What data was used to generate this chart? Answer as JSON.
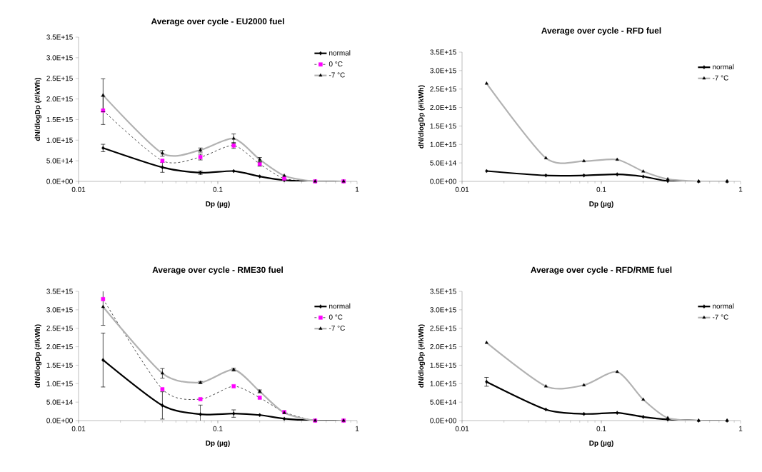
{
  "chart_data": [
    {
      "type": "line",
      "title": "Average over cycle - EU2000 fuel",
      "xlabel": "Dp (µg)",
      "ylabel": "dN/dlogDp  (#/kWh)",
      "log": "x",
      "legend": "top right",
      "grid": false,
      "x": [
        0.015,
        0.04,
        0.075,
        0.13,
        0.2,
        0.3,
        0.5,
        0.8
      ],
      "xlim": [
        0.01,
        1
      ],
      "xticks": [
        0.01,
        0.1,
        1
      ],
      "ylim": [
        0,
        3500000000000000.0
      ],
      "yticks": [
        {
          "value": 0,
          "label": "0.0E+00"
        },
        {
          "value": 500000000000000.0,
          "label": "5.0E+14"
        },
        {
          "value": 1000000000000000.0,
          "label": "1.0E+15"
        },
        {
          "value": 1500000000000000.0,
          "label": "1.5E+15"
        },
        {
          "value": 2000000000000000.0,
          "label": "2.0E+15"
        },
        {
          "value": 2500000000000000.0,
          "label": "2.5E+15"
        },
        {
          "value": 3000000000000000.0,
          "label": "3.0E+15"
        },
        {
          "value": 3500000000000000.0,
          "label": "3.5E+15"
        }
      ],
      "series": [
        {
          "name": "normal",
          "color": "#000000",
          "marker": "diamond",
          "line_style": "solid",
          "values": [
            810000000000000.0,
            340000000000000.0,
            210000000000000.0,
            250000000000000.0,
            120000000000000.0,
            30000000000000.0,
            0,
            0
          ],
          "errors": [
            90000000000000.0,
            120000000000000.0,
            40000000000000.0,
            null,
            null,
            null,
            null,
            null
          ]
        },
        {
          "name": "0 °C",
          "color": "#ff00ff",
          "marker": "square",
          "line_style": "dashed",
          "values": [
            1720000000000000.0,
            500000000000000.0,
            590000000000000.0,
            870000000000000.0,
            420000000000000.0,
            70000000000000.0,
            0,
            0
          ],
          "errors": [
            340000000000000.0,
            null,
            70000000000000.0,
            70000000000000.0,
            50000000000000.0,
            null,
            null,
            null
          ]
        },
        {
          "name": "-7 °C",
          "color": "#b2b2b2",
          "marker": "triangle",
          "line_style": "solid",
          "values": [
            2090000000000000.0,
            680000000000000.0,
            760000000000000.0,
            1040000000000000.0,
            530000000000000.0,
            140000000000000.0,
            0,
            0
          ],
          "errors": [
            400000000000000.0,
            70000000000000.0,
            50000000000000.0,
            110000000000000.0,
            50000000000000.0,
            null,
            null,
            null
          ]
        }
      ]
    },
    {
      "type": "line",
      "title": "Average over cycle - RFD fuel",
      "xlabel": "Dp (µg)",
      "ylabel": "dN/dlogDp (#/kWh)",
      "log": "x",
      "legend": "top right",
      "grid": false,
      "x": [
        0.015,
        0.04,
        0.075,
        0.13,
        0.2,
        0.3,
        0.5,
        0.8
      ],
      "xlim": [
        0.01,
        1
      ],
      "xticks": [
        0.01,
        0.1,
        1
      ],
      "ylim": [
        0,
        3500000000000000.0
      ],
      "yticks": [
        {
          "value": 0,
          "label": "0.0E+00"
        },
        {
          "value": 500000000000000.0,
          "label": "5.0E+14"
        },
        {
          "value": 1000000000000000.0,
          "label": "1.0E+15"
        },
        {
          "value": 1500000000000000.0,
          "label": "1.5E+15"
        },
        {
          "value": 2000000000000000.0,
          "label": "2.0E+15"
        },
        {
          "value": 2500000000000000.0,
          "label": "2.5E+15"
        },
        {
          "value": 3000000000000000.0,
          "label": "3.0E+15"
        },
        {
          "value": 3500000000000000.0,
          "label": "3.5E+15"
        }
      ],
      "series": [
        {
          "name": "normal",
          "color": "#000000",
          "marker": "diamond",
          "line_style": "solid",
          "values": [
            280000000000000.0,
            160000000000000.0,
            160000000000000.0,
            190000000000000.0,
            130000000000000.0,
            10000000000000.0,
            0,
            0
          ]
        },
        {
          "name": "-7 °C",
          "color": "#b2b2b2",
          "marker": "triangle",
          "line_style": "solid",
          "values": [
            2650000000000000.0,
            630000000000000.0,
            550000000000000.0,
            590000000000000.0,
            270000000000000.0,
            60000000000000.0,
            0,
            0
          ]
        }
      ]
    },
    {
      "type": "line",
      "title": "Average over cycle - RME30 fuel",
      "xlabel": "Dp (µg)",
      "ylabel": "dN/dlogDp  (#/kWh)",
      "log": "x",
      "legend": "top right",
      "grid": false,
      "x": [
        0.015,
        0.04,
        0.075,
        0.13,
        0.2,
        0.3,
        0.5,
        0.8
      ],
      "xlim": [
        0.01,
        1
      ],
      "xticks": [
        0.01,
        0.1,
        1
      ],
      "ylim": [
        0,
        3500000000000000.0
      ],
      "yticks": [
        {
          "value": 0,
          "label": "0.0E+00"
        },
        {
          "value": 500000000000000.0,
          "label": "5.0E+14"
        },
        {
          "value": 1000000000000000.0,
          "label": "1.0E+15"
        },
        {
          "value": 1500000000000000.0,
          "label": "1.5E+15"
        },
        {
          "value": 2000000000000000.0,
          "label": "2.0E+15"
        },
        {
          "value": 2500000000000000.0,
          "label": "2.5E+15"
        },
        {
          "value": 3000000000000000.0,
          "label": "3.0E+15"
        },
        {
          "value": 3500000000000000.0,
          "label": "3.5E+15"
        }
      ],
      "series": [
        {
          "name": "normal",
          "color": "#000000",
          "marker": "diamond",
          "line_style": "solid",
          "values": [
            1640000000000000.0,
            410000000000000.0,
            170000000000000.0,
            190000000000000.0,
            150000000000000.0,
            50000000000000.0,
            0,
            0
          ],
          "errors": [
            730000000000000.0,
            370000000000000.0,
            250000000000000.0,
            100000000000000.0,
            null,
            null,
            null,
            null
          ]
        },
        {
          "name": "0 °C",
          "color": "#ff00ff",
          "marker": "square",
          "line_style": "dashed",
          "values": [
            3290000000000000.0,
            850000000000000.0,
            580000000000000.0,
            930000000000000.0,
            620000000000000.0,
            230000000000000.0,
            0,
            0
          ]
        },
        {
          "name": "-7 °C",
          "color": "#b2b2b2",
          "marker": "triangle",
          "line_style": "solid",
          "values": [
            3080000000000000.0,
            1280000000000000.0,
            1030000000000000.0,
            1380000000000000.0,
            790000000000000.0,
            210000000000000.0,
            0,
            0
          ],
          "errors": [
            500000000000000.0,
            130000000000000.0,
            30000000000000.0,
            40000000000000.0,
            40000000000000.0,
            null,
            null,
            null
          ]
        }
      ]
    },
    {
      "type": "line",
      "title": "Average over cycle - RFD/RME fuel",
      "xlabel": "Dp (µg)",
      "ylabel": "dN/dlogDp (#/kWh)",
      "log": "x",
      "legend": "top right",
      "grid": false,
      "x": [
        0.015,
        0.04,
        0.075,
        0.13,
        0.2,
        0.3,
        0.5,
        0.8
      ],
      "xlim": [
        0.01,
        1
      ],
      "xticks": [
        0.01,
        0.1,
        1
      ],
      "ylim": [
        0,
        3500000000000000.0
      ],
      "yticks": [
        {
          "value": 0,
          "label": "0.0E+00"
        },
        {
          "value": 500000000000000.0,
          "label": "5.0E+14"
        },
        {
          "value": 1000000000000000.0,
          "label": "1.0E+15"
        },
        {
          "value": 1500000000000000.0,
          "label": "1.5E+15"
        },
        {
          "value": 2000000000000000.0,
          "label": "2.0E+15"
        },
        {
          "value": 2500000000000000.0,
          "label": "2.5E+15"
        },
        {
          "value": 3000000000000000.0,
          "label": "3.0E+15"
        },
        {
          "value": 3500000000000000.0,
          "label": "3.5E+15"
        }
      ],
      "series": [
        {
          "name": "normal",
          "color": "#000000",
          "marker": "diamond",
          "line_style": "solid",
          "values": [
            1050000000000000.0,
            300000000000000.0,
            180000000000000.0,
            210000000000000.0,
            100000000000000.0,
            30000000000000.0,
            0,
            0
          ],
          "errors": [
            120000000000000.0,
            null,
            null,
            null,
            null,
            null,
            null,
            null
          ]
        },
        {
          "name": "-7 °C",
          "color": "#b2b2b2",
          "marker": "triangle",
          "line_style": "solid",
          "values": [
            2110000000000000.0,
            930000000000000.0,
            960000000000000.0,
            1320000000000000.0,
            570000000000000.0,
            70000000000000.0,
            0,
            0
          ]
        }
      ]
    }
  ]
}
